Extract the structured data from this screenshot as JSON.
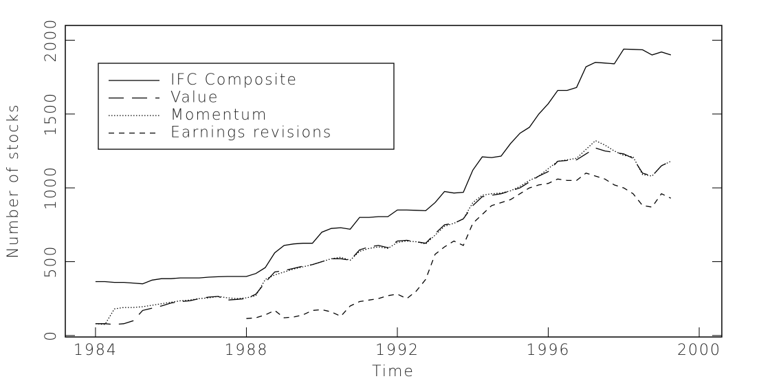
{
  "chart_data": {
    "type": "line",
    "xlabel": "Time",
    "ylabel": "Number of stocks",
    "x": [
      1984,
      1984.25,
      1984.5,
      1984.75,
      1985,
      1985.25,
      1985.5,
      1985.75,
      1986,
      1986.25,
      1986.5,
      1986.75,
      1987,
      1987.25,
      1987.5,
      1987.75,
      1988,
      1988.25,
      1988.5,
      1988.75,
      1989,
      1989.25,
      1989.5,
      1989.75,
      1990,
      1990.25,
      1990.5,
      1990.75,
      1991,
      1991.25,
      1991.5,
      1991.75,
      1992,
      1992.25,
      1992.5,
      1992.75,
      1993,
      1993.25,
      1993.5,
      1993.75,
      1994,
      1994.25,
      1994.5,
      1994.75,
      1995,
      1995.25,
      1995.5,
      1995.75,
      1996,
      1996.25,
      1996.5,
      1996.75,
      1997,
      1997.25,
      1997.5,
      1997.75,
      1998,
      1998.25,
      1998.5,
      1998.75,
      1999,
      1999.25
    ],
    "series": [
      {
        "name": "IFC Composite",
        "color": "#000000",
        "dash": "solid",
        "values": [
          365,
          365,
          360,
          360,
          355,
          350,
          375,
          385,
          385,
          390,
          390,
          390,
          395,
          398,
          400,
          400,
          400,
          420,
          460,
          560,
          610,
          620,
          625,
          625,
          700,
          725,
          730,
          720,
          800,
          800,
          805,
          805,
          850,
          850,
          848,
          845,
          900,
          975,
          965,
          970,
          1120,
          1210,
          1205,
          1215,
          1300,
          1370,
          1410,
          1500,
          1570,
          1660,
          1660,
          1680,
          1820,
          1850,
          1845,
          1840,
          1940,
          1938,
          1935,
          1900,
          1920,
          1900
        ]
      },
      {
        "name": "Value",
        "color": "#000000",
        "dash": "longdash",
        "values": [
          80,
          80,
          75,
          80,
          100,
          170,
          185,
          200,
          220,
          230,
          235,
          250,
          260,
          265,
          240,
          245,
          250,
          280,
          360,
          430,
          440,
          455,
          470,
          480,
          500,
          520,
          520,
          510,
          580,
          600,
          610,
          595,
          640,
          645,
          635,
          625,
          690,
          750,
          760,
          790,
          880,
          940,
          950,
          960,
          980,
          1000,
          1040,
          1080,
          1110,
          1180,
          1185,
          1190,
          1230,
          1270,
          1250,
          1240,
          1230,
          1200,
          1100,
          1080,
          1150,
          1180
        ]
      },
      {
        "name": "Momentum",
        "color": "#000000",
        "dash": "dotted",
        "values": [
          80,
          75,
          180,
          190,
          190,
          195,
          205,
          215,
          225,
          235,
          240,
          250,
          255,
          265,
          255,
          250,
          255,
          270,
          380,
          410,
          430,
          450,
          465,
          480,
          500,
          520,
          530,
          510,
          570,
          590,
          600,
          590,
          630,
          640,
          635,
          620,
          680,
          740,
          760,
          790,
          900,
          950,
          960,
          965,
          980,
          1010,
          1050,
          1080,
          1130,
          1180,
          1190,
          1200,
          1260,
          1320,
          1290,
          1250,
          1220,
          1210,
          1090,
          1080,
          1150,
          1180
        ]
      },
      {
        "name": "Earnings revisions",
        "color": "#000000",
        "dash": "dash",
        "values": [
          null,
          null,
          null,
          null,
          null,
          null,
          null,
          null,
          null,
          null,
          null,
          null,
          null,
          null,
          null,
          null,
          115,
          120,
          140,
          170,
          120,
          125,
          140,
          170,
          175,
          160,
          130,
          200,
          230,
          240,
          250,
          270,
          280,
          250,
          300,
          380,
          550,
          600,
          640,
          610,
          760,
          820,
          880,
          900,
          920,
          960,
          1000,
          1020,
          1030,
          1060,
          1050,
          1050,
          1100,
          1080,
          1060,
          1020,
          1000,
          960,
          880,
          870,
          960,
          930
        ]
      }
    ],
    "xlim": [
      1983.2,
      2000.6
    ],
    "xticks": [
      1984,
      1988,
      1992,
      1996,
      2000
    ],
    "ylim": [
      -10,
      2100
    ],
    "yticks": [
      0,
      500,
      1000,
      1500,
      2000
    ],
    "legend": "upper-left"
  }
}
